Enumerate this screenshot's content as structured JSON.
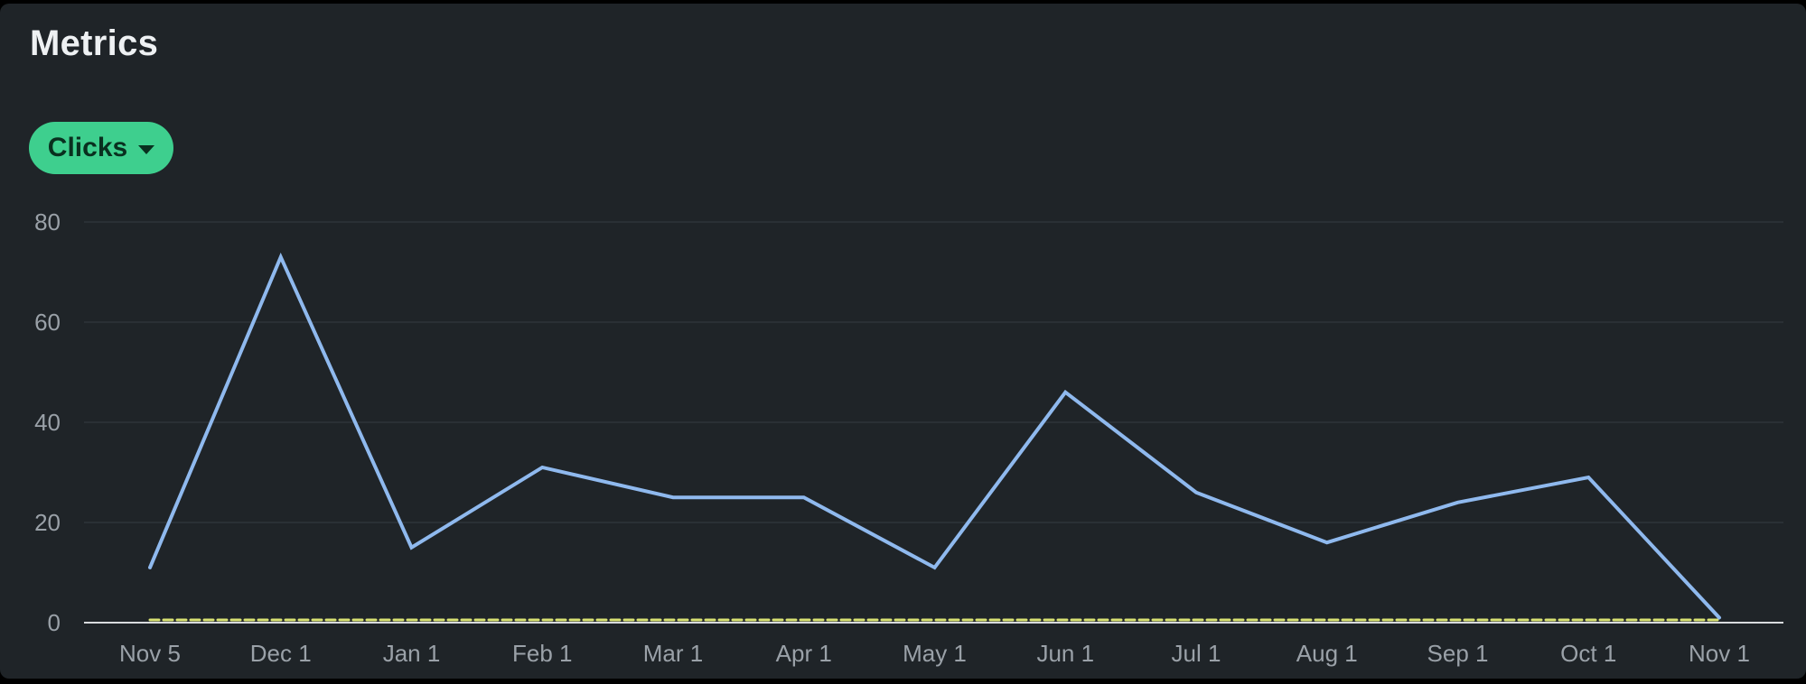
{
  "page": {
    "title": "Metrics"
  },
  "metric_selector": {
    "label": "Clicks",
    "icon": "chevron-down-icon"
  },
  "colors": {
    "panel_background": "#1f2428",
    "accent_green": "#3ecf8e",
    "button_text": "#09301f",
    "line_blue": "#8fb9ee",
    "baseline_yellow": "#d9e273",
    "grid": "#363c42",
    "axis": "#d8dbde",
    "tick_text": "#9aa1a8",
    "title_text": "#eef1f3"
  },
  "chart_data": {
    "type": "line",
    "title": "Metrics",
    "selected_metric": "Clicks",
    "categories": [
      "Nov 5",
      "Dec 1",
      "Jan 1",
      "Feb 1",
      "Mar 1",
      "Apr 1",
      "May 1",
      "Jun 1",
      "Jul 1",
      "Aug 1",
      "Sep 1",
      "Oct 1",
      "Nov 1"
    ],
    "series": [
      {
        "name": "Clicks",
        "style": "solid",
        "color": "#8fb9ee",
        "values": [
          11,
          73,
          15,
          31,
          25,
          25,
          11,
          46,
          26,
          16,
          24,
          29,
          1
        ]
      },
      {
        "name": "baseline",
        "style": "dashed",
        "color": "#d9e273",
        "values": [
          0,
          0,
          0,
          0,
          0,
          0,
          0,
          0,
          0,
          0,
          0,
          0,
          0
        ]
      }
    ],
    "xlabel": "",
    "ylabel": "",
    "ylim": [
      0,
      80
    ],
    "yticks": [
      0,
      20,
      40,
      60,
      80
    ],
    "grid": true,
    "legend": "none"
  }
}
